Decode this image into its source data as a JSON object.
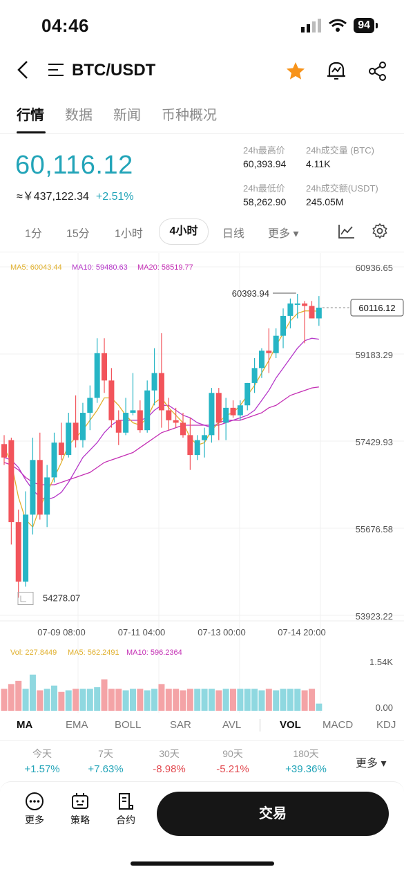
{
  "status": {
    "time": "04:46",
    "battery": "94"
  },
  "header": {
    "title": "BTC/USDT",
    "back_icon": "chevron-left-icon",
    "menu_icon": "menu-icon",
    "favorite_icon": "star-icon",
    "alert_icon": "bell-icon",
    "share_icon": "share-icon"
  },
  "tabs": [
    "行情",
    "数据",
    "新闻",
    "币种概况"
  ],
  "price": {
    "last": "60,116.12",
    "cny": "≈￥437,122.34",
    "change": "+2.51%"
  },
  "stats": {
    "high_label": "24h最高价",
    "high": "60,393.94",
    "vol_label": "24h成交量 (BTC)",
    "vol": "4.11K",
    "low_label": "24h最低价",
    "low": "58,262.90",
    "amt_label": "24h成交额(USDT)",
    "amt": "245.05M"
  },
  "intervals": {
    "i1": "1分",
    "i2": "15分",
    "i3": "1小时",
    "i4": "4小时",
    "i5": "日线",
    "more": "更多"
  },
  "ma_legend": {
    "ma5": "MA5: 60043.44",
    "ma10": "MA10: 59480.63",
    "ma20": "MA20: 58519.77"
  },
  "chart_data": {
    "type": "candlestick",
    "y_ticks": [
      "60936.65",
      "59183.29",
      "57429.93",
      "55676.58",
      "53923.22"
    ],
    "x_ticks": [
      "07-09 08:00",
      "07-11 04:00",
      "07-13 00:00",
      "07-14 20:00"
    ],
    "high_label": "60393.94",
    "low_label": "54278.07",
    "last_price_label": "60116.12",
    "ylim": [
      53923.22,
      60936.65
    ],
    "candles": [
      [
        57370,
        57550,
        56950,
        57100
      ],
      [
        57450,
        57500,
        55350,
        55800
      ],
      [
        55800,
        56050,
        54278,
        54600
      ],
      [
        54600,
        56420,
        54500,
        55950
      ],
      [
        55950,
        57500,
        55550,
        57050
      ],
      [
        57050,
        57600,
        55850,
        55950
      ],
      [
        55950,
        56950,
        55700,
        56700
      ],
      [
        56700,
        57600,
        56600,
        57400
      ],
      [
        57400,
        57800,
        57050,
        57150
      ],
      [
        57150,
        58000,
        57100,
        57800
      ],
      [
        57800,
        58350,
        57300,
        57450
      ],
      [
        57450,
        58200,
        57300,
        58000
      ],
      [
        58000,
        58550,
        57650,
        58300
      ],
      [
        58300,
        59500,
        58200,
        59200
      ],
      [
        59200,
        59500,
        58400,
        58650
      ],
      [
        58650,
        58900,
        57700,
        57850
      ],
      [
        57850,
        58050,
        57350,
        57600
      ],
      [
        57600,
        58300,
        57550,
        58000
      ],
      [
        58000,
        58800,
        57950,
        58050
      ],
      [
        58050,
        58250,
        57600,
        57650
      ],
      [
        57650,
        58650,
        57600,
        58450
      ],
      [
        58450,
        59300,
        58150,
        58800
      ],
      [
        58800,
        59600,
        57700,
        58050
      ],
      [
        58050,
        58300,
        57650,
        57850
      ],
      [
        57850,
        58100,
        57700,
        57800
      ],
      [
        57800,
        58000,
        57500,
        57550
      ],
      [
        57550,
        57900,
        56850,
        57150
      ],
      [
        57150,
        57550,
        57050,
        57450
      ],
      [
        57450,
        57700,
        57100,
        57550
      ],
      [
        57550,
        58500,
        57400,
        58400
      ],
      [
        58400,
        58500,
        57450,
        57800
      ],
      [
        57800,
        58300,
        57450,
        58100
      ],
      [
        58100,
        58250,
        57900,
        57950
      ],
      [
        57950,
        58250,
        57850,
        58150
      ],
      [
        58150,
        58600,
        58050,
        58600
      ],
      [
        58600,
        59100,
        58400,
        58900
      ],
      [
        58900,
        59300,
        58700,
        59250
      ],
      [
        59250,
        59700,
        58800,
        59200
      ],
      [
        59200,
        59700,
        59100,
        59550
      ],
      [
        59550,
        60100,
        59300,
        59950
      ],
      [
        59950,
        60300,
        59700,
        60200
      ],
      [
        60200,
        60394,
        59900,
        60200
      ],
      [
        60200,
        60250,
        59400,
        60150
      ],
      [
        60150,
        60250,
        59900,
        59900
      ],
      [
        59900,
        60350,
        59750,
        60116
      ]
    ],
    "ma_lines": {
      "ma5": [
        57300,
        57000,
        56300,
        55850,
        55700,
        56100,
        56400,
        56700,
        57000,
        57350,
        57500,
        57650,
        57850,
        58050,
        58300,
        58300,
        58150,
        57950,
        57800,
        57750,
        57900,
        58200,
        58300,
        58100,
        57950,
        57800,
        57500,
        57350,
        57400,
        57650,
        57800,
        57950,
        58000,
        58150,
        58350,
        58550,
        58800,
        59050,
        59350,
        59600,
        59850,
        60000,
        60050,
        60050,
        60044
      ],
      "ma10": [
        57100,
        57050,
        56900,
        56650,
        56450,
        56300,
        56250,
        56300,
        56400,
        56600,
        56850,
        57100,
        57250,
        57400,
        57600,
        57750,
        57850,
        57850,
        57850,
        57850,
        57900,
        58050,
        58150,
        58150,
        58050,
        57950,
        57900,
        57800,
        57750,
        57700,
        57800,
        57850,
        57850,
        57900,
        57950,
        58050,
        58250,
        58450,
        58700,
        58900,
        59100,
        59300,
        59450,
        59500,
        59481
      ],
      "ma20": [
        57000,
        56950,
        56850,
        56700,
        56600,
        56550,
        56550,
        56550,
        56600,
        56650,
        56700,
        56750,
        56800,
        56900,
        57000,
        57050,
        57100,
        57150,
        57200,
        57300,
        57400,
        57500,
        57600,
        57650,
        57700,
        57750,
        57750,
        57750,
        57750,
        57750,
        57750,
        57800,
        57850,
        57850,
        57900,
        57950,
        58000,
        58100,
        58150,
        58250,
        58350,
        58400,
        58450,
        58500,
        58520
      ]
    },
    "volume": {
      "legend": {
        "vol": "Vol: 227.8449",
        "ma5": "MA5: 562.2491",
        "ma10": "MA10: 596.2364"
      },
      "y_ticks": [
        "1.54K",
        "0.00"
      ],
      "values": [
        700,
        850,
        950,
        700,
        1150,
        650,
        700,
        800,
        600,
        650,
        700,
        700,
        700,
        750,
        1000,
        700,
        700,
        650,
        700,
        700,
        650,
        700,
        850,
        700,
        700,
        650,
        700,
        700,
        700,
        700,
        650,
        700,
        700,
        700,
        700,
        700,
        650,
        700,
        650,
        700,
        700,
        700,
        650,
        700,
        228
      ]
    }
  },
  "colors": {
    "up": "#26b5c5",
    "down": "#f2545b",
    "ma5": "#e0b02e",
    "ma10": "#b537c9",
    "ma20": "#c42fb4",
    "accent": "#22a4b8",
    "star": "#f7931a"
  },
  "indicators": {
    "ma": "MA",
    "ema": "EMA",
    "boll": "BOLL",
    "sar": "SAR",
    "avl": "AVL",
    "vol": "VOL",
    "macd": "MACD",
    "kdj": "KDJ"
  },
  "performance": {
    "d1_label": "今天",
    "d1": "+1.57%",
    "d7_label": "7天",
    "d7": "+7.63%",
    "d30_label": "30天",
    "d30": "-8.98%",
    "d90_label": "90天",
    "d90": "-5.21%",
    "d180_label": "180天",
    "d180": "+39.36%",
    "more": "更多"
  },
  "bottom": {
    "more": "更多",
    "strategy": "策略",
    "contract": "合约",
    "trade": "交易"
  }
}
